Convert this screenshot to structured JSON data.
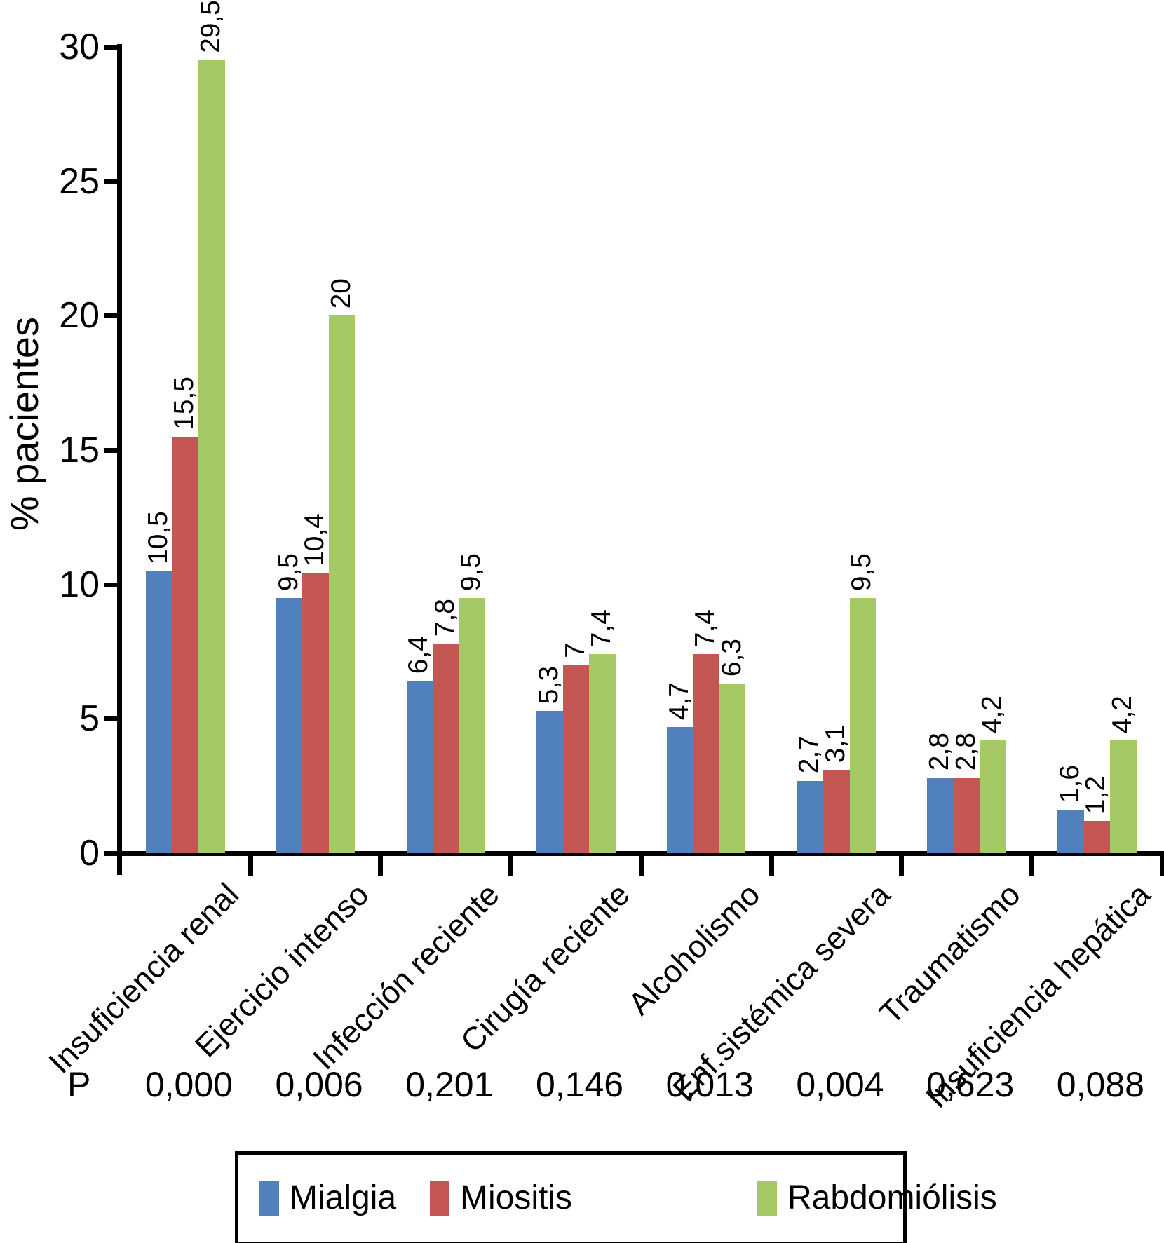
{
  "figure": {
    "y_axis_title": "% pacientes",
    "p_row_label": "P"
  },
  "chart_data": {
    "type": "bar",
    "title": "",
    "xlabel": "",
    "ylabel": "% pacientes",
    "ylim": [
      0,
      30
    ],
    "yticks": [
      0,
      5,
      10,
      15,
      20,
      25,
      30
    ],
    "grid": false,
    "legend_position": "bottom-box",
    "decimal_separator": ",",
    "categories": [
      "Insuficiencia renal",
      "Ejercicio intenso",
      "Infección reciente",
      "Cirugía reciente",
      "Alcoholismo",
      "Enf.sistémica severa",
      "Traumatismo",
      "Insuficiencia hepática"
    ],
    "series": [
      {
        "name": "Mialgia",
        "color": "#5081BD",
        "values": [
          10.5,
          9.5,
          6.4,
          5.3,
          4.7,
          2.7,
          2.8,
          1.6
        ],
        "labels": [
          "10,5",
          "9,5",
          "6,4",
          "5,3",
          "4,7",
          "2,7",
          "2,8",
          "1,6"
        ]
      },
      {
        "name": "Miositis",
        "color": "#C45653",
        "values": [
          15.5,
          10.4,
          7.8,
          7,
          7.4,
          3.1,
          2.8,
          1.2
        ],
        "labels": [
          "15,5",
          "10,4",
          "7,8",
          "7",
          "7,4",
          "3,1",
          "2,8",
          "1,2"
        ]
      },
      {
        "name": "Rabdomiólisis",
        "color": "#A5C964",
        "values": [
          29.5,
          20,
          9.5,
          7.4,
          6.3,
          9.5,
          4.2,
          4.2
        ],
        "labels": [
          "29,5",
          "20",
          "9,5",
          "7,4",
          "6,3",
          "9,5",
          "4,2",
          "4,2"
        ]
      }
    ],
    "p_values": [
      "0,000",
      "0,006",
      "0,201",
      "0,146",
      "0,013",
      "0,004",
      "0,623",
      "0,088"
    ]
  }
}
